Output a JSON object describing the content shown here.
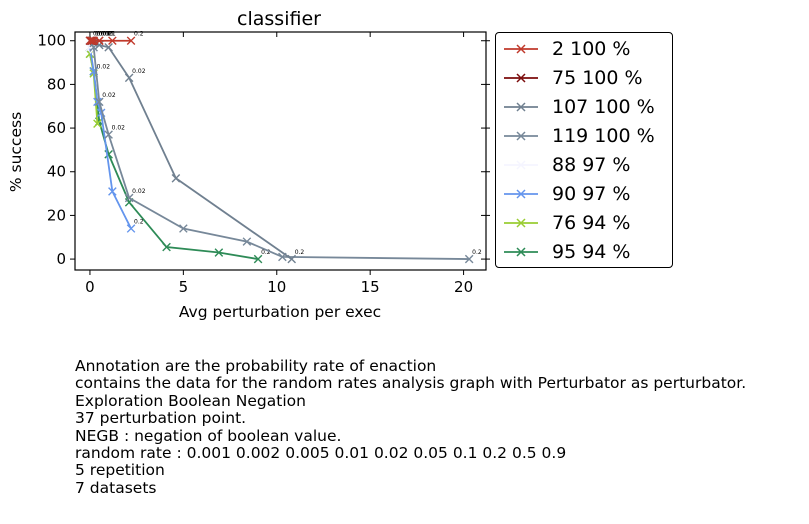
{
  "chart_data": {
    "type": "line",
    "title": "classifier",
    "xlabel": "Avg perturbation per exec",
    "ylabel": "% success",
    "xlim": [
      -0.8,
      21.2
    ],
    "ylim": [
      -5,
      104
    ],
    "xticks": [
      0,
      5,
      10,
      15,
      20
    ],
    "yticks": [
      0,
      20,
      40,
      60,
      80,
      100
    ],
    "legend_position": "outside-right",
    "series": [
      {
        "name": "2 100 %",
        "color": "#c0392b",
        "x": [
          0,
          0.1,
          0.2,
          0.5,
          1.2,
          2.2
        ],
        "y": [
          100,
          100,
          100,
          100,
          100,
          100
        ],
        "annotations": [
          "0.001",
          "0.002",
          "0.005",
          "0.01",
          "",
          "0.2"
        ]
      },
      {
        "name": "75 100 %",
        "color": "#7b0c0c",
        "x": [
          0,
          0.05,
          0.1,
          0.2,
          0.5
        ],
        "y": [
          100,
          100,
          100,
          100,
          100
        ],
        "annotations": [
          "",
          "",
          "",
          "",
          ""
        ]
      },
      {
        "name": "107 100 %",
        "color": "#708090",
        "x": [
          0,
          0.2,
          0.5,
          1.0,
          2.1,
          4.6,
          10.8
        ],
        "y": [
          100,
          99,
          98,
          97,
          83,
          37,
          0
        ],
        "annotations": [
          "",
          "",
          "",
          "",
          "0.02",
          "",
          "0.2"
        ]
      },
      {
        "name": "119 100 %",
        "color": "#778899",
        "x": [
          0,
          0.2,
          0.5,
          1.0,
          2.1,
          5.0,
          8.4,
          10.3,
          20.3
        ],
        "y": [
          100,
          97,
          72,
          57,
          28,
          14,
          8,
          1,
          0
        ],
        "annotations": [
          "",
          "",
          "0.02",
          "0.02",
          "0.02",
          "",
          "",
          "",
          "0.2"
        ]
      },
      {
        "name": "88 97 %",
        "color": "#f5f5ff",
        "x": [
          0,
          0.2
        ],
        "y": [
          97,
          96
        ],
        "annotations": [
          "",
          ""
        ]
      },
      {
        "name": "90 97 %",
        "color": "#6495ed",
        "x": [
          0,
          0.2,
          0.4,
          0.6,
          1.2,
          2.2
        ],
        "y": [
          97,
          86,
          72,
          67,
          31,
          14
        ],
        "annotations": [
          "",
          "",
          "",
          "",
          "",
          "0.2"
        ]
      },
      {
        "name": "76 94 %",
        "color": "#9acd32",
        "x": [
          0,
          0.2,
          0.4
        ],
        "y": [
          94,
          85,
          62
        ],
        "annotations": [
          "",
          "0.02",
          ""
        ]
      },
      {
        "name": "95 94 %",
        "color": "#2e8b57",
        "x": [
          0,
          0.2,
          0.5,
          1.0,
          2.1,
          4.1,
          6.9,
          9.0
        ],
        "y": [
          94,
          86,
          63,
          48,
          26,
          5.5,
          3,
          0
        ],
        "annotations": [
          "",
          "",
          "",
          "",
          "",
          "",
          "",
          "0.2"
        ]
      }
    ]
  },
  "caption": {
    "lines": [
      "Annotation are the probability rate of enaction",
      "contains the data for the random rates analysis graph with Perturbator as perturbator.",
      "Exploration Boolean Negation",
      "37 perturbation point.",
      "NEGB : negation of boolean value.",
      "random rate : 0.001 0.002 0.005 0.01 0.02 0.05 0.1 0.2 0.5 0.9",
      "5 repetition",
      "7 datasets"
    ]
  }
}
